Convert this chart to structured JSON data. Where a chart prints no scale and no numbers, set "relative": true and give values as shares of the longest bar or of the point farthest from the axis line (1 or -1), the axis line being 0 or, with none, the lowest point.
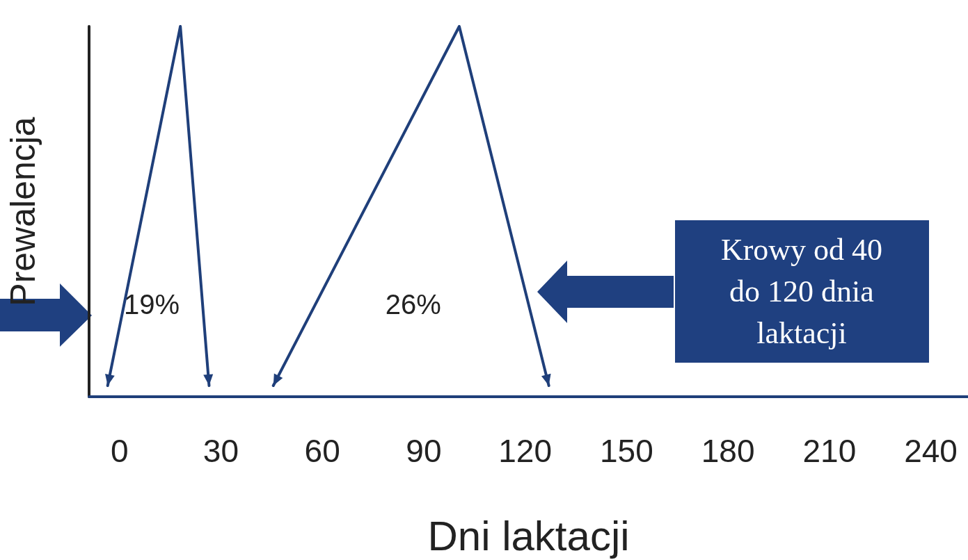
{
  "chart_data": {
    "type": "line",
    "relative": true,
    "xlabel": "Dni laktacji",
    "ylabel": "Prewalencja",
    "xlim": [
      -9,
      251
    ],
    "xticks": [
      0,
      30,
      60,
      90,
      120,
      150,
      180,
      210,
      240
    ],
    "grid": false,
    "series": [
      {
        "color": "#1f3f7a",
        "x": [
          -3.5,
          18,
          26.5
        ],
        "values": [
          0.03,
          1,
          0.03
        ]
      },
      {
        "color": "#1f3f7a",
        "x": [
          45.5,
          100.5,
          127
        ],
        "values": [
          0.03,
          1,
          0.03
        ]
      }
    ],
    "annotations": [
      "19%",
      "26%",
      "Krowy od 40\ndo 120 dnia\nlaktacji"
    ]
  }
}
